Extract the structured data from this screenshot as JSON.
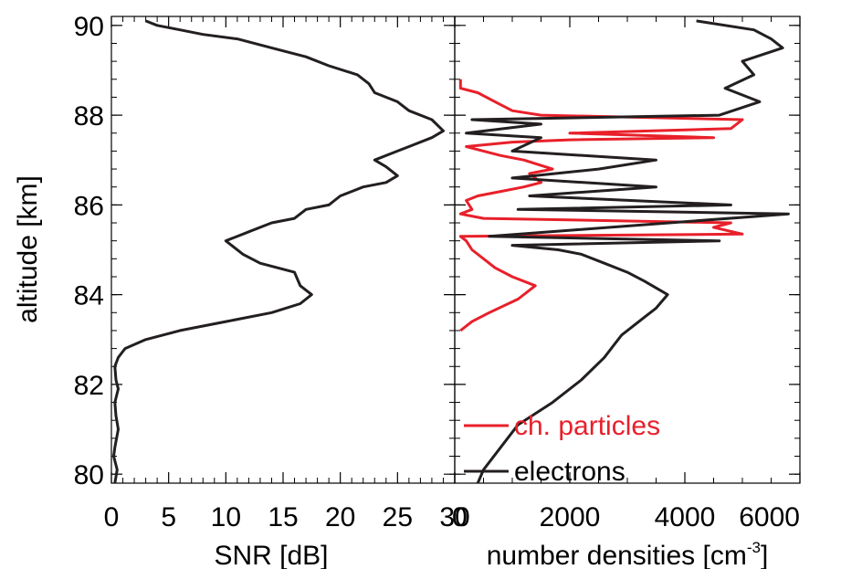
{
  "y_axis_label": "altitude [km]",
  "chart_data": [
    {
      "type": "line",
      "xlabel": "SNR [dB]",
      "xlim": [
        0,
        30
      ],
      "x_ticks": [
        0,
        5,
        10,
        15,
        20,
        25,
        30
      ],
      "x_tick_labels": [
        "0",
        "5",
        "10",
        "15",
        "20",
        "25",
        "30"
      ],
      "ylabel": "altitude [km]",
      "ylim": [
        79.8,
        90.2
      ],
      "y_ticks": [
        80,
        82,
        84,
        86,
        88,
        90
      ],
      "y_tick_labels": [
        "80",
        "82",
        "84",
        "86",
        "88",
        "90"
      ],
      "grid": false,
      "series": [
        {
          "color": "#231f20",
          "points": [
            [
              0.3,
              79.8
            ],
            [
              0.5,
              80.1
            ],
            [
              0.2,
              80.4
            ],
            [
              0.3,
              80.6
            ],
            [
              0.6,
              81.0
            ],
            [
              0.4,
              81.3
            ],
            [
              0.3,
              81.6
            ],
            [
              0.6,
              81.9
            ],
            [
              0.4,
              82.1
            ],
            [
              0.3,
              82.4
            ],
            [
              0.6,
              82.6
            ],
            [
              1.2,
              82.8
            ],
            [
              3.0,
              83.0
            ],
            [
              6.0,
              83.2
            ],
            [
              10.0,
              83.4
            ],
            [
              14.0,
              83.6
            ],
            [
              16.5,
              83.8
            ],
            [
              17.5,
              84.0
            ],
            [
              16.5,
              84.2
            ],
            [
              16.0,
              84.5
            ],
            [
              13.0,
              84.7
            ],
            [
              11.5,
              84.9
            ],
            [
              10.0,
              85.2
            ],
            [
              12.0,
              85.4
            ],
            [
              14.0,
              85.6
            ],
            [
              16.0,
              85.7
            ],
            [
              16.5,
              85.8
            ],
            [
              17.0,
              85.9
            ],
            [
              19.0,
              86.0
            ],
            [
              20.0,
              86.2
            ],
            [
              21.0,
              86.3
            ],
            [
              22.0,
              86.4
            ],
            [
              24.0,
              86.5
            ],
            [
              25.0,
              86.65
            ],
            [
              24.0,
              86.85
            ],
            [
              23.0,
              87.0
            ],
            [
              25.0,
              87.2
            ],
            [
              26.0,
              87.3
            ],
            [
              28.0,
              87.5
            ],
            [
              29.0,
              87.65
            ],
            [
              28.0,
              87.9
            ],
            [
              26.0,
              88.1
            ],
            [
              25.0,
              88.3
            ],
            [
              23.0,
              88.5
            ],
            [
              22.5,
              88.7
            ],
            [
              21.5,
              88.9
            ],
            [
              19.0,
              89.1
            ],
            [
              17.0,
              89.3
            ],
            [
              14.0,
              89.5
            ],
            [
              11.0,
              89.7
            ],
            [
              8.0,
              89.8
            ],
            [
              6.0,
              89.9
            ],
            [
              4.0,
              90.0
            ],
            [
              3.0,
              90.1
            ]
          ]
        }
      ]
    },
    {
      "type": "line",
      "xlabel_main": "number densities [cm",
      "xlabel_sup": "-3",
      "xlabel_end": "]",
      "xlim": [
        0,
        6000
      ],
      "x_ticks": [
        0,
        2000,
        4000,
        6000
      ],
      "x_tick_labels": [
        "0",
        "2000",
        "4000",
        "6000"
      ],
      "ylim": [
        79.8,
        90.2
      ],
      "grid": false,
      "legend": "bottom-left",
      "series": [
        {
          "name": "ch. particles",
          "color": "#e8202a",
          "points": [
            [
              100,
              83.2
            ],
            [
              300,
              83.4
            ],
            [
              600,
              83.6
            ],
            [
              1100,
              83.9
            ],
            [
              1400,
              84.2
            ],
            [
              1000,
              84.4
            ],
            [
              700,
              84.6
            ],
            [
              500,
              84.8
            ],
            [
              300,
              85.0
            ],
            [
              200,
              85.2
            ],
            [
              100,
              85.3
            ],
            [
              5000,
              85.35
            ],
            [
              4500,
              85.5
            ],
            [
              4800,
              85.6
            ],
            [
              500,
              85.7
            ],
            [
              100,
              85.8
            ],
            [
              300,
              85.9
            ],
            [
              200,
              86.1
            ],
            [
              400,
              86.2
            ],
            [
              800,
              86.3
            ],
            [
              1200,
              86.4
            ],
            [
              1500,
              86.5
            ],
            [
              1300,
              86.7
            ],
            [
              1700,
              86.8
            ],
            [
              1200,
              87.0
            ],
            [
              800,
              87.1
            ],
            [
              500,
              87.2
            ],
            [
              200,
              87.3
            ],
            [
              1000,
              87.4
            ],
            [
              2000,
              87.45
            ],
            [
              4500,
              87.5
            ],
            [
              2000,
              87.6
            ],
            [
              4800,
              87.7
            ],
            [
              5000,
              87.9
            ],
            [
              1500,
              88.0
            ],
            [
              1000,
              88.1
            ],
            [
              700,
              88.3
            ],
            [
              400,
              88.5
            ],
            [
              100,
              88.6
            ],
            [
              100,
              88.8
            ]
          ]
        },
        {
          "name": "electrons",
          "color": "#231f20",
          "points": [
            [
              400,
              79.8
            ],
            [
              500,
              80.1
            ],
            [
              800,
              80.6
            ],
            [
              1100,
              81.1
            ],
            [
              1700,
              81.6
            ],
            [
              2200,
              82.1
            ],
            [
              2600,
              82.6
            ],
            [
              2900,
              83.1
            ],
            [
              3300,
              83.5
            ],
            [
              3500,
              83.7
            ],
            [
              3700,
              84.0
            ],
            [
              3300,
              84.3
            ],
            [
              3000,
              84.5
            ],
            [
              2600,
              84.7
            ],
            [
              2200,
              84.9
            ],
            [
              1800,
              85.0
            ],
            [
              1000,
              85.1
            ],
            [
              4600,
              85.2
            ],
            [
              600,
              85.3
            ],
            [
              5800,
              85.8
            ],
            [
              1100,
              85.9
            ],
            [
              4800,
              86.0
            ],
            [
              1300,
              86.2
            ],
            [
              3500,
              86.4
            ],
            [
              1000,
              86.6
            ],
            [
              2500,
              86.8
            ],
            [
              3500,
              87.0
            ],
            [
              1000,
              87.2
            ],
            [
              1500,
              87.5
            ],
            [
              200,
              87.6
            ],
            [
              1500,
              87.8
            ],
            [
              300,
              87.9
            ],
            [
              4600,
              88.0
            ],
            [
              5300,
              88.3
            ],
            [
              4700,
              88.6
            ],
            [
              5200,
              88.9
            ],
            [
              5000,
              89.2
            ],
            [
              5700,
              89.5
            ],
            [
              5500,
              89.7
            ],
            [
              5200,
              89.9
            ],
            [
              4200,
              90.1
            ]
          ]
        }
      ]
    }
  ]
}
